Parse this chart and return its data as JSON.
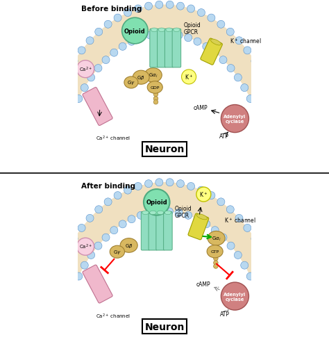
{
  "bg_color": "#ffffff",
  "membrane_bead_color": "#b8d8f0",
  "membrane_inner_color": "#f0e0c0",
  "opioid_color": "#80e0b0",
  "gpcr_color": "#90ddc0",
  "gpcr_edge": "#50aa80",
  "k_channel_color": "#e0d840",
  "k_channel_edge": "#a0a000",
  "ca_channel_color": "#f0b8cc",
  "ca_channel_edge": "#c07090",
  "adenylyl_color": "#d08080",
  "adenylyl_edge": "#a05050",
  "g_protein_color": "#d8b860",
  "g_protein_edge": "#a08030",
  "ca2_bg": "#f8d0e0",
  "ca2_edge": "#d090b0",
  "k_plus_bg": "#ffff80",
  "k_plus_edge": "#c0c000",
  "title_top": "Before binding",
  "title_bottom": "After binding",
  "neuron_label": "Neuron",
  "opioid_label": "Opioid",
  "gpcr_label": "Opioid\nGPCR",
  "k_channel_label": "K$^+$ channel",
  "ca2_label": "Ca$^{2+}$",
  "ca2_channel_label": "Ca$^{2+}$ channel",
  "adenylyl_label": "Adenylyl\ncyclase",
  "camp_label": "cAMP",
  "atp_label": "ATP",
  "k_plus_label": "K$^+$",
  "gdp_label": "GDP",
  "gtp_label": "GTP",
  "ga_label": "G$\\alpha_i$",
  "gb_label": "G$\\beta$",
  "gy_label": "G$\\gamma$"
}
